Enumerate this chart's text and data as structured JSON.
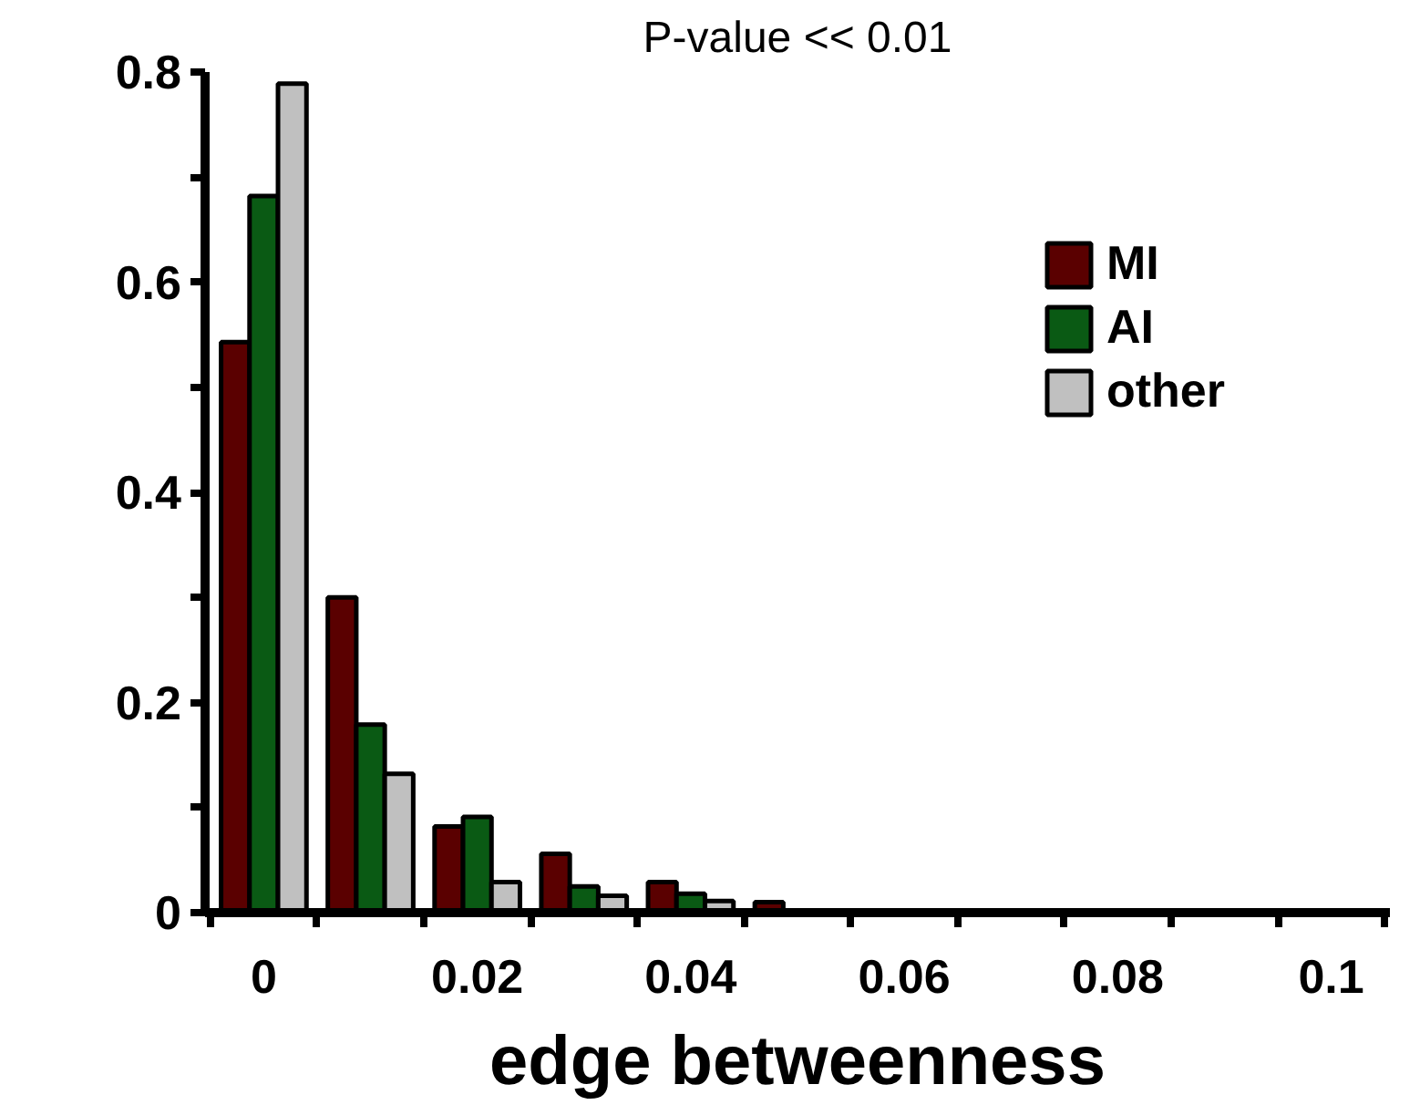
{
  "chart_data": {
    "type": "histogram",
    "title": "P-value << 0.01",
    "xlabel": "edge betweenness",
    "bins": [
      -0.005,
      0.005,
      0.015,
      0.025,
      0.035,
      0.045,
      0.055,
      0.065,
      0.075,
      0.085,
      0.095,
      0.105
    ],
    "series": [
      {
        "name": "MI",
        "color": "#5a0000",
        "values": [
          0.543,
          0.3,
          0.082,
          0.056,
          0.029,
          0.01,
          null,
          null,
          null,
          0.002,
          0.002
        ]
      },
      {
        "name": "AI",
        "color": "#0a5a14",
        "values": [
          0.682,
          0.179,
          0.091,
          0.025,
          0.018,
          null,
          null,
          0.002,
          0.002,
          0.001,
          0.001
        ]
      },
      {
        "name": "other",
        "color": "#c0c0c0",
        "values": [
          0.789,
          0.132,
          0.029,
          0.016,
          0.011,
          null,
          0.002,
          0.002,
          0.001,
          0.001,
          0.001
        ]
      }
    ],
    "xlim": [
      -0.0055,
      0.1055
    ],
    "ylim": [
      0,
      0.8
    ],
    "xticks": [
      0,
      0.02,
      0.04,
      0.06,
      0.08,
      {
        "value": 0.1,
        "label": "0.1"
      }
    ],
    "yticks": [
      0,
      {
        "value": 0.1,
        "label": null
      },
      0.2,
      {
        "value": 0.3,
        "label": null
      },
      0.4,
      {
        "value": 0.5,
        "label": null
      },
      0.6,
      {
        "value": 0.7,
        "label": null
      },
      0.8
    ],
    "grid": false,
    "legend": "top right"
  }
}
